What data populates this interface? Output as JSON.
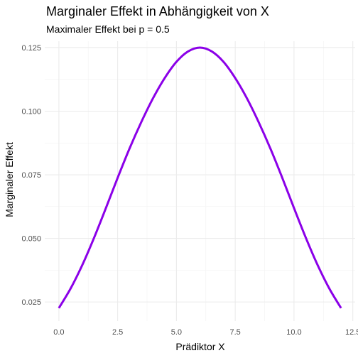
{
  "chart_data": {
    "type": "line",
    "title": "Marginaler Effekt in Abhängigkeit von X",
    "subtitle": "Maximaler Effekt bei p = 0.5",
    "xlabel": "Prädiktor X",
    "ylabel": "Marginaler Effekt",
    "xlim": [
      -0.6,
      12.6
    ],
    "ylim": [
      0.0175,
      0.1275
    ],
    "x_ticks": [
      0,
      2.5,
      5,
      7.5,
      10,
      12.5
    ],
    "x_tick_labels": [
      "0.0",
      "2.5",
      "5.0",
      "7.5",
      "10.0",
      "12.5"
    ],
    "y_ticks": [
      0.025,
      0.05,
      0.075,
      0.1,
      0.125
    ],
    "y_tick_labels": [
      "0.025",
      "0.050",
      "0.075",
      "0.100",
      "0.125"
    ],
    "grid": true,
    "line_color": "#8b00e8",
    "series": [
      {
        "x": [
          0,
          0.5,
          1,
          1.5,
          2,
          2.5,
          3,
          3.5,
          4,
          4.5,
          5,
          5.5,
          6,
          6.5,
          7,
          7.5,
          8,
          8.5,
          9,
          9.5,
          10,
          10.5,
          11,
          11.5,
          12
        ],
        "values": [
          0.0226,
          0.0303,
          0.0396,
          0.0503,
          0.0619,
          0.0738,
          0.0852,
          0.0956,
          0.105,
          0.113,
          0.1194,
          0.1235,
          0.125,
          0.1235,
          0.1194,
          0.113,
          0.105,
          0.0956,
          0.0852,
          0.0738,
          0.0619,
          0.0503,
          0.0396,
          0.0303,
          0.0226
        ]
      }
    ]
  }
}
